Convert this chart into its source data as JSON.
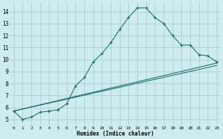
{
  "xlabel": "Humidex (Indice chaleur)",
  "background_color": "#ceeced",
  "grid_color": "#aecfd4",
  "line_color": "#1a6e6a",
  "xlim": [
    -0.5,
    23.5
  ],
  "ylim": [
    4.5,
    14.8
  ],
  "xticks": [
    0,
    1,
    2,
    3,
    4,
    5,
    6,
    7,
    8,
    9,
    10,
    11,
    12,
    13,
    14,
    15,
    16,
    17,
    18,
    19,
    20,
    21,
    22,
    23
  ],
  "yticks": [
    5,
    6,
    7,
    8,
    9,
    10,
    11,
    12,
    13,
    14
  ],
  "line1_x": [
    0,
    1,
    2,
    3,
    4,
    5,
    6,
    7,
    8,
    9,
    10,
    11,
    12,
    13,
    14,
    15,
    16,
    17,
    18,
    19,
    20,
    21,
    22,
    23
  ],
  "line1_y": [
    5.7,
    5.0,
    5.2,
    5.6,
    5.7,
    5.8,
    6.3,
    7.8,
    8.5,
    9.8,
    10.5,
    11.4,
    12.5,
    13.5,
    14.3,
    14.3,
    13.5,
    13.0,
    12.0,
    11.2,
    11.2,
    10.4,
    10.3,
    9.8
  ],
  "line2_x": [
    0,
    23
  ],
  "line2_y": [
    5.7,
    9.5
  ],
  "line3_x": [
    0,
    23
  ],
  "line3_y": [
    5.7,
    9.7
  ]
}
